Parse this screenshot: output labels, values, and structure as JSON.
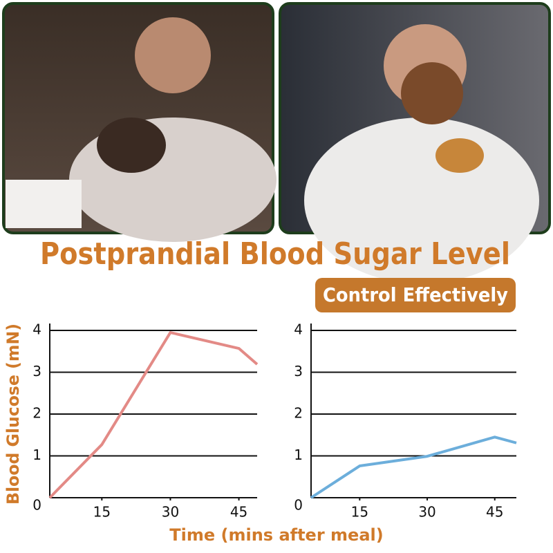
{
  "title": "Postprandial Blood Sugar Level",
  "badge": "Control Effectively",
  "xlabel": "Time (mins after meal)",
  "chart_data": [
    {
      "type": "line",
      "ylabel": "Blood Glucose (mN)",
      "x": [
        3.6,
        15,
        30,
        45,
        49
      ],
      "series": [
        {
          "color": "#e38a86",
          "values": [
            0,
            1.27,
            3.95,
            3.57,
            3.19
          ]
        }
      ],
      "xlim": [
        3.6,
        49
      ],
      "xticks": [
        15,
        30,
        45
      ],
      "ylim": [
        0,
        4
      ],
      "yticks": [
        0,
        1,
        2,
        3,
        4
      ],
      "grid": true
    },
    {
      "type": "line",
      "x": [
        4.2,
        15,
        30,
        45,
        49.8
      ],
      "series": [
        {
          "color": "#6caedb",
          "values": [
            0,
            0.76,
            0.99,
            1.45,
            1.31
          ]
        }
      ],
      "xlim": [
        4.2,
        49.8
      ],
      "xticks": [
        15,
        30,
        45
      ],
      "ylim": [
        0,
        4
      ],
      "yticks": [
        0,
        1,
        2,
        3,
        4
      ],
      "grid": true
    }
  ]
}
